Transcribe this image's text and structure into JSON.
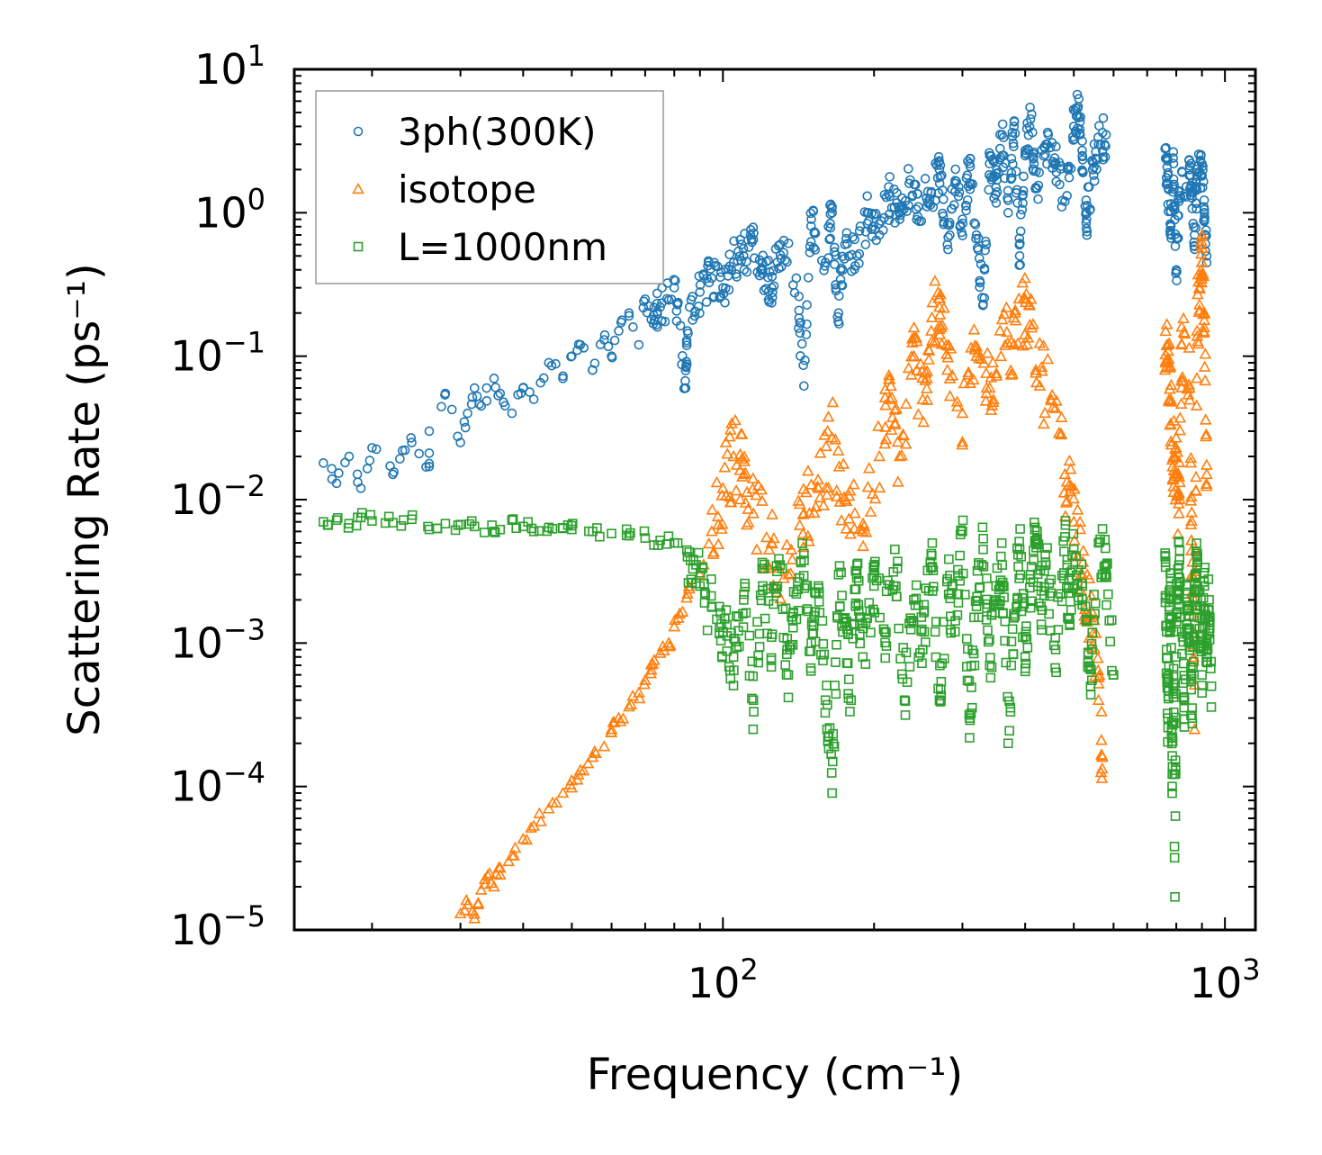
{
  "chart_data": {
    "type": "scatter",
    "title": "",
    "xlabel": "Frequency (cm⁻¹)",
    "ylabel": "Scattering Rate (ps⁻¹)",
    "xscale": "log",
    "yscale": "log",
    "xlim": [
      14,
      1150
    ],
    "ylim": [
      1e-05,
      10
    ],
    "x_ticks": [
      {
        "value": 100,
        "base": "10",
        "exp": "2"
      },
      {
        "value": 1000,
        "base": "10",
        "exp": "3"
      }
    ],
    "y_ticks": [
      {
        "value": 10,
        "base": "10",
        "exp": "1"
      },
      {
        "value": 1,
        "base": "10",
        "exp": "0"
      },
      {
        "value": 0.1,
        "base": "10",
        "exp": "−1"
      },
      {
        "value": 0.01,
        "base": "10",
        "exp": "−2"
      },
      {
        "value": 0.001,
        "base": "10",
        "exp": "−3"
      },
      {
        "value": 0.0001,
        "base": "10",
        "exp": "−4"
      },
      {
        "value": 1e-05,
        "base": "10",
        "exp": "−5"
      }
    ],
    "legend_position": "top-left",
    "series": [
      {
        "name": "3ph(300K)",
        "marker": "circle",
        "color": "#1f77b4",
        "points": [
          [
            16,
            0.018
          ],
          [
            17,
            0.013
          ],
          [
            18,
            0.02
          ],
          [
            19,
            0.012
          ],
          [
            20,
            0.023
          ],
          [
            22,
            0.015
          ],
          [
            23,
            0.022
          ],
          [
            24,
            0.025
          ],
          [
            26,
            0.017
          ],
          [
            26,
            0.03
          ],
          [
            28,
            0.055
          ],
          [
            30,
            0.025
          ],
          [
            31,
            0.04
          ],
          [
            32,
            0.06
          ],
          [
            33,
            0.045
          ],
          [
            35,
            0.07
          ],
          [
            36,
            0.055
          ],
          [
            38,
            0.04
          ],
          [
            40,
            0.06
          ],
          [
            42,
            0.05
          ],
          [
            45,
            0.09
          ],
          [
            48,
            0.07
          ],
          [
            50,
            0.1
          ],
          [
            52,
            0.12
          ],
          [
            55,
            0.08
          ],
          [
            58,
            0.13
          ],
          [
            60,
            0.1
          ],
          [
            62,
            0.15
          ],
          [
            65,
            0.2
          ],
          [
            68,
            0.12
          ],
          [
            70,
            0.25
          ],
          [
            72,
            0.18
          ],
          [
            75,
            0.22
          ],
          [
            80,
            0.3
          ],
          [
            84,
            0.06
          ],
          [
            85,
            0.15
          ],
          [
            90,
            0.28
          ],
          [
            95,
            0.35
          ],
          [
            100,
            0.3
          ],
          [
            105,
            0.45
          ],
          [
            110,
            0.5
          ],
          [
            115,
            0.65
          ],
          [
            120,
            0.4
          ],
          [
            125,
            0.3
          ],
          [
            130,
            0.6
          ],
          [
            140,
            0.35
          ],
          [
            145,
            0.062
          ],
          [
            150,
            0.9
          ],
          [
            160,
            0.45
          ],
          [
            165,
            1.1
          ],
          [
            170,
            0.2
          ],
          [
            175,
            0.6
          ],
          [
            185,
            0.5
          ],
          [
            195,
            1.0
          ],
          [
            205,
            0.7
          ],
          [
            215,
            1.3
          ],
          [
            225,
            0.9
          ],
          [
            235,
            1.6
          ],
          [
            245,
            1.1
          ],
          [
            260,
            1.4
          ],
          [
            270,
            2.0
          ],
          [
            280,
            0.6
          ],
          [
            290,
            1.6
          ],
          [
            300,
            0.9
          ],
          [
            310,
            2.2
          ],
          [
            320,
            0.7
          ],
          [
            330,
            0.23
          ],
          [
            340,
            2.5
          ],
          [
            350,
            1.5
          ],
          [
            360,
            3.5
          ],
          [
            370,
            1.0
          ],
          [
            380,
            4.0
          ],
          [
            390,
            0.5
          ],
          [
            400,
            2.5
          ],
          [
            410,
            4.5
          ],
          [
            420,
            1.5
          ],
          [
            440,
            3.0
          ],
          [
            460,
            2.2
          ],
          [
            480,
            1.2
          ],
          [
            500,
            4.0
          ],
          [
            510,
            5.5
          ],
          [
            520,
            2.5
          ],
          [
            530,
            0.9
          ],
          [
            545,
            2.0
          ],
          [
            560,
            3.0
          ],
          [
            580,
            3.5
          ],
          [
            760,
            2.8
          ],
          [
            770,
            1.6
          ],
          [
            780,
            0.8
          ],
          [
            790,
            2.2
          ],
          [
            800,
            0.4
          ],
          [
            810,
            1.2
          ],
          [
            850,
            2.0
          ],
          [
            860,
            1.4
          ],
          [
            870,
            0.7
          ],
          [
            880,
            1.8
          ],
          [
            900,
            2.2
          ],
          [
            910,
            1.0
          ],
          [
            920,
            0.5
          ]
        ]
      },
      {
        "name": "isotope",
        "marker": "triangle",
        "color": "#ff7f0e",
        "points": [
          [
            30,
            1.3e-05
          ],
          [
            31,
            1.5e-05
          ],
          [
            32,
            1.2e-05
          ],
          [
            33,
            1.9e-05
          ],
          [
            34,
            2.4e-05
          ],
          [
            35,
            2e-05
          ],
          [
            36,
            2.7e-05
          ],
          [
            38,
            3.3e-05
          ],
          [
            40,
            4.3e-05
          ],
          [
            42,
            5.3e-05
          ],
          [
            45,
            7e-05
          ],
          [
            48,
            9e-05
          ],
          [
            50,
            0.00011
          ],
          [
            52,
            0.00013
          ],
          [
            55,
            0.00016
          ],
          [
            58,
            0.00019
          ],
          [
            60,
            0.00025
          ],
          [
            62,
            0.0003
          ],
          [
            65,
            0.00036
          ],
          [
            68,
            0.00045
          ],
          [
            70,
            0.00055
          ],
          [
            72,
            0.00065
          ],
          [
            75,
            0.00085
          ],
          [
            78,
            0.001
          ],
          [
            80,
            0.0013
          ],
          [
            82,
            0.0016
          ],
          [
            85,
            0.0022
          ],
          [
            90,
            0.003
          ],
          [
            95,
            0.006
          ],
          [
            100,
            0.012
          ],
          [
            105,
            0.02
          ],
          [
            110,
            0.015
          ],
          [
            115,
            0.008
          ],
          [
            125,
            0.005
          ],
          [
            135,
            0.003
          ],
          [
            145,
            0.008
          ],
          [
            155,
            0.012
          ],
          [
            165,
            0.027
          ],
          [
            175,
            0.01
          ],
          [
            190,
            0.006
          ],
          [
            205,
            0.02
          ],
          [
            215,
            0.05
          ],
          [
            225,
            0.02
          ],
          [
            240,
            0.1
          ],
          [
            250,
            0.05
          ],
          [
            260,
            0.15
          ],
          [
            270,
            0.22
          ],
          [
            280,
            0.08
          ],
          [
            300,
            0.04
          ],
          [
            320,
            0.1
          ],
          [
            340,
            0.06
          ],
          [
            360,
            0.18
          ],
          [
            380,
            0.12
          ],
          [
            400,
            0.25
          ],
          [
            420,
            0.08
          ],
          [
            450,
            0.05
          ],
          [
            480,
            0.015
          ],
          [
            500,
            0.007
          ],
          [
            520,
            0.003
          ],
          [
            540,
            0.0015
          ],
          [
            560,
            0.0004
          ],
          [
            570,
            0.00016
          ],
          [
            760,
            0.08
          ],
          [
            770,
            0.12
          ],
          [
            780,
            0.05
          ],
          [
            790,
            0.02
          ],
          [
            800,
            0.015
          ],
          [
            810,
            0.008
          ],
          [
            820,
            0.12
          ],
          [
            850,
            0.06
          ],
          [
            860,
            0.003
          ],
          [
            870,
            0.00025
          ],
          [
            880,
            0.15
          ],
          [
            890,
            0.3
          ],
          [
            900,
            0.45
          ],
          [
            910,
            0.2
          ],
          [
            920,
            0.015
          ]
        ]
      },
      {
        "name": "L=1000nm",
        "marker": "square",
        "color": "#2ca02c",
        "points": [
          [
            16,
            0.007
          ],
          [
            17,
            0.0072
          ],
          [
            18,
            0.0068
          ],
          [
            19,
            0.0075
          ],
          [
            20,
            0.0071
          ],
          [
            22,
            0.0069
          ],
          [
            24,
            0.0073
          ],
          [
            26,
            0.0062
          ],
          [
            28,
            0.0068
          ],
          [
            30,
            0.0067
          ],
          [
            32,
            0.0065
          ],
          [
            35,
            0.006
          ],
          [
            38,
            0.0072
          ],
          [
            40,
            0.0065
          ],
          [
            42,
            0.006
          ],
          [
            45,
            0.0064
          ],
          [
            48,
            0.0063
          ],
          [
            50,
            0.0062
          ],
          [
            55,
            0.006
          ],
          [
            60,
            0.0058
          ],
          [
            65,
            0.0056
          ],
          [
            70,
            0.0054
          ],
          [
            75,
            0.0052
          ],
          [
            80,
            0.005
          ],
          [
            85,
            0.004
          ],
          [
            90,
            0.0025
          ],
          [
            95,
            0.0018
          ],
          [
            100,
            0.0012
          ],
          [
            105,
            0.0008
          ],
          [
            110,
            0.002
          ],
          [
            115,
            0.0004
          ],
          [
            120,
            0.0025
          ],
          [
            125,
            0.0011
          ],
          [
            130,
            0.0035
          ],
          [
            135,
            0.0006
          ],
          [
            140,
            0.0022
          ],
          [
            145,
            0.0042
          ],
          [
            150,
            0.001
          ],
          [
            155,
            0.0025
          ],
          [
            160,
            0.0004
          ],
          [
            165,
            9e-05
          ],
          [
            170,
            0.003
          ],
          [
            175,
            0.0015
          ],
          [
            180,
            0.0004
          ],
          [
            185,
            0.0035
          ],
          [
            190,
            0.0008
          ],
          [
            200,
            0.0025
          ],
          [
            210,
            0.0012
          ],
          [
            220,
            0.0045
          ],
          [
            230,
            0.0004
          ],
          [
            240,
            0.002
          ],
          [
            250,
            0.0009
          ],
          [
            260,
            0.0042
          ],
          [
            270,
            0.0004
          ],
          [
            280,
            0.0028
          ],
          [
            290,
            0.0012
          ],
          [
            300,
            0.006
          ],
          [
            310,
            0.0003
          ],
          [
            320,
            0.0018
          ],
          [
            330,
            0.0045
          ],
          [
            340,
            0.0007
          ],
          [
            350,
            0.0025
          ],
          [
            360,
            0.0035
          ],
          [
            370,
            0.0002
          ],
          [
            380,
            0.0015
          ],
          [
            390,
            0.0045
          ],
          [
            400,
            0.0008
          ],
          [
            410,
            0.0028
          ],
          [
            420,
            0.005
          ],
          [
            430,
            0.0018
          ],
          [
            440,
            0.0035
          ],
          [
            460,
            0.0009
          ],
          [
            480,
            0.0055
          ],
          [
            490,
            0.0015
          ],
          [
            500,
            0.0045
          ],
          [
            520,
            0.0025
          ],
          [
            540,
            0.0005
          ],
          [
            560,
            0.005
          ],
          [
            580,
            0.003
          ],
          [
            600,
            0.0006
          ],
          [
            760,
            0.004
          ],
          [
            765,
            0.0009
          ],
          [
            770,
            0.0003
          ],
          [
            775,
            0.0015
          ],
          [
            780,
            0.0025
          ],
          [
            785,
            0.0001
          ],
          [
            790,
            0.0006
          ],
          [
            795,
            1.7e-05
          ],
          [
            800,
            0.002
          ],
          [
            810,
            0.0035
          ],
          [
            820,
            0.0012
          ],
          [
            830,
            0.0004
          ],
          [
            840,
            0.0025
          ],
          [
            850,
            0.001
          ],
          [
            860,
            0.0003
          ],
          [
            870,
            0.002
          ],
          [
            880,
            0.0035
          ],
          [
            890,
            0.0015
          ],
          [
            900,
            0.0006
          ],
          [
            910,
            0.0025
          ],
          [
            920,
            0.001
          ],
          [
            930,
            0.002
          ],
          [
            940,
            0.0005
          ]
        ]
      }
    ]
  }
}
